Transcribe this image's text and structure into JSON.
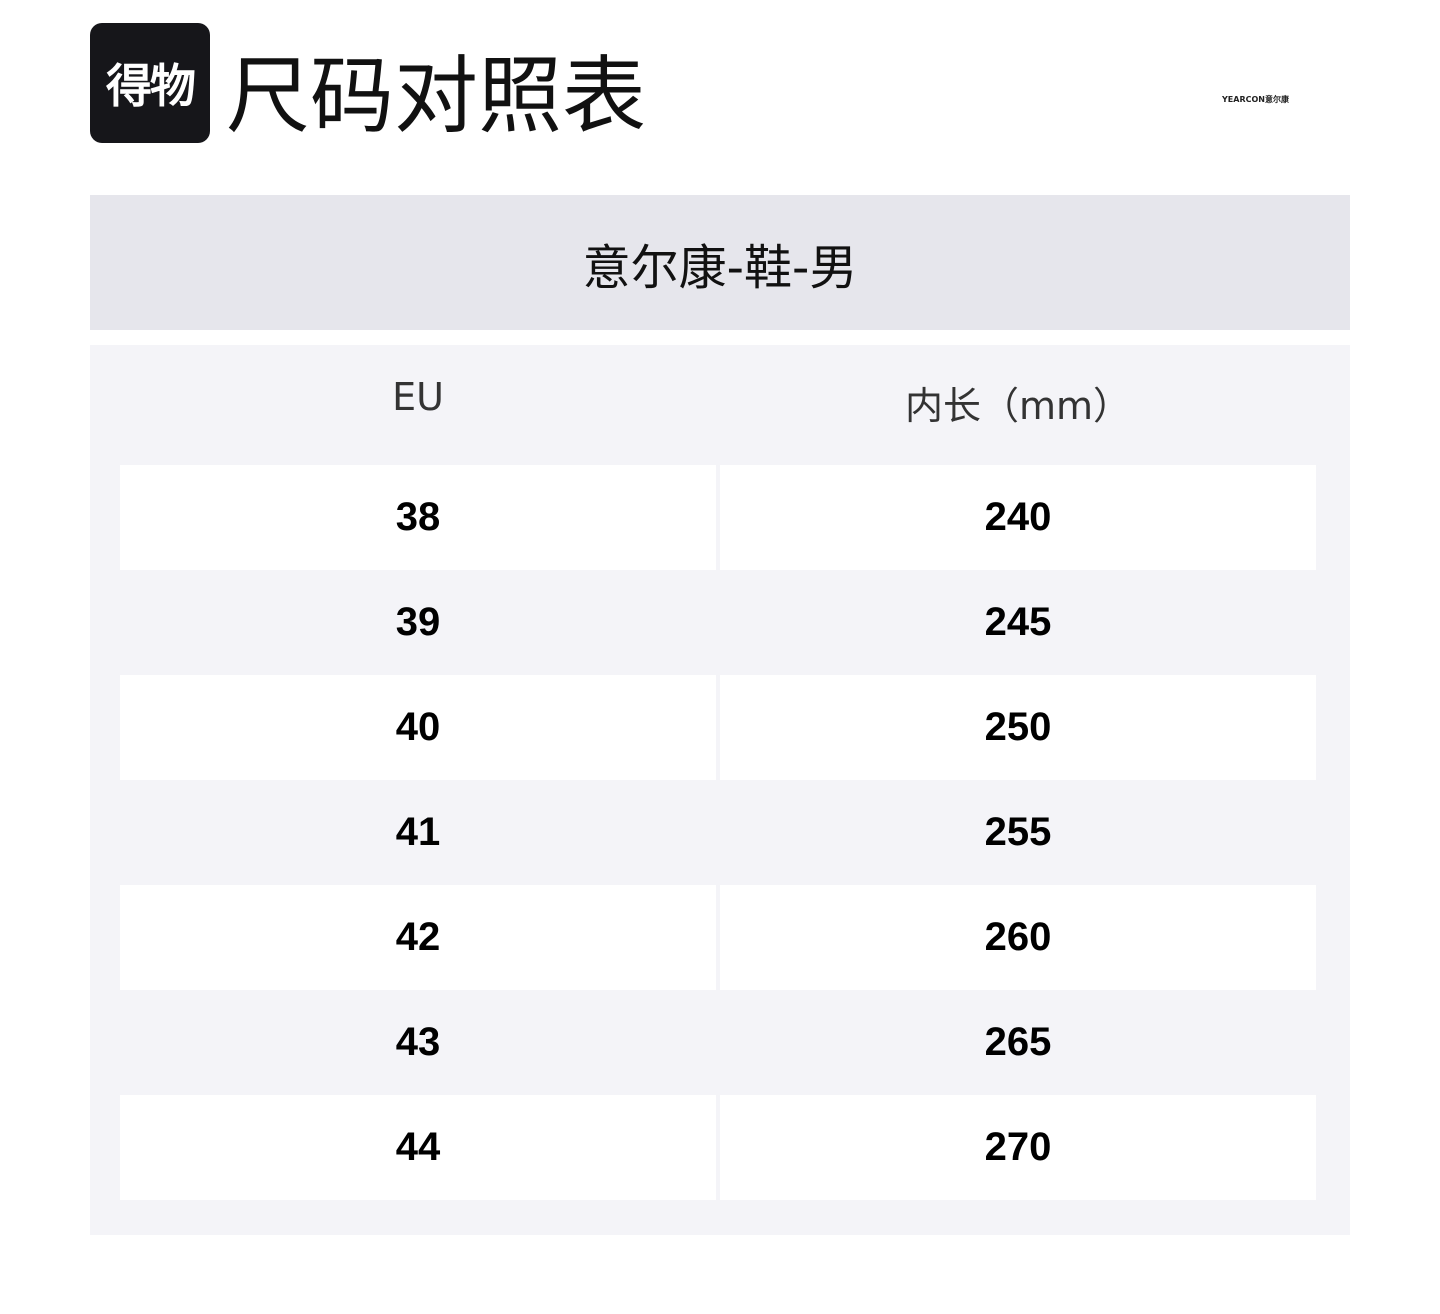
{
  "header": {
    "logo_text": "得物",
    "title": "尺码对照表",
    "brand": "YEARCON意尔康"
  },
  "chart_title": "意尔康-鞋-男",
  "table": {
    "columns": [
      "EU",
      "内长（mm）"
    ],
    "rows": [
      [
        "38",
        "240"
      ],
      [
        "39",
        "245"
      ],
      [
        "40",
        "250"
      ],
      [
        "41",
        "255"
      ],
      [
        "42",
        "260"
      ],
      [
        "43",
        "265"
      ],
      [
        "44",
        "270"
      ]
    ]
  }
}
